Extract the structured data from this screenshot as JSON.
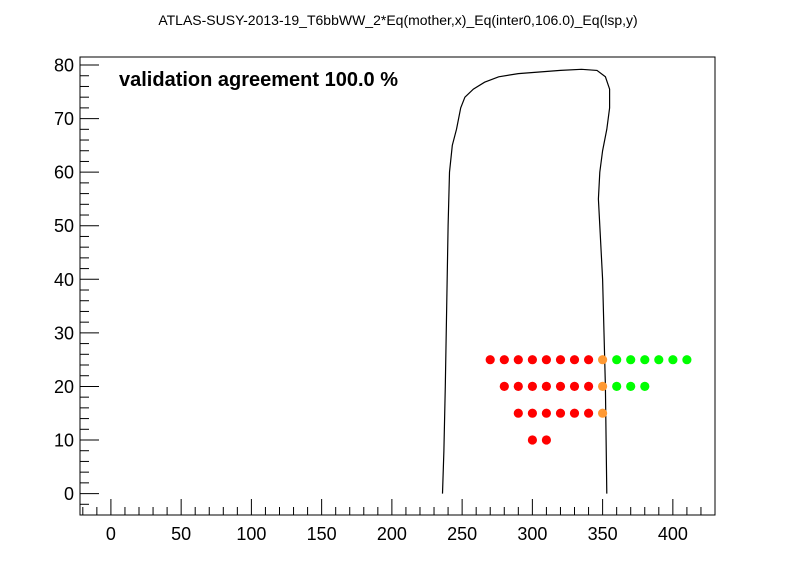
{
  "chart_data": {
    "type": "scatter",
    "title": "ATLAS-SUSY-2013-19_T6bbWW_2*Eq(mother,x)_Eq(inter0,106.0)_Eq(lsp,y)",
    "annotation": "validation agreement 100.0 %",
    "xlabel": "",
    "ylabel": "",
    "xlim": [
      -22,
      430
    ],
    "ylim": [
      -4,
      81.5
    ],
    "x_ticks": [
      0,
      50,
      100,
      150,
      200,
      250,
      300,
      350,
      400
    ],
    "x_tick_labels": [
      "0",
      "50",
      "100",
      "150",
      "200",
      "250",
      "300",
      "350",
      "400"
    ],
    "y_ticks": [
      0,
      10,
      20,
      30,
      40,
      50,
      60,
      70,
      80
    ],
    "y_tick_labels": [
      "0",
      "10",
      "20",
      "30",
      "40",
      "50",
      "60",
      "70",
      "80"
    ],
    "grid": false,
    "colors": {
      "red": "#ff0000",
      "orange": "#ff9933",
      "green": "#00ff00",
      "contour": "#000000"
    },
    "series": [
      {
        "color": "red",
        "points": [
          [
            270,
            25
          ],
          [
            280,
            25
          ],
          [
            290,
            25
          ],
          [
            300,
            25
          ],
          [
            310,
            25
          ],
          [
            320,
            25
          ],
          [
            330,
            25
          ],
          [
            340,
            25
          ],
          [
            280,
            20
          ],
          [
            290,
            20
          ],
          [
            300,
            20
          ],
          [
            310,
            20
          ],
          [
            320,
            20
          ],
          [
            330,
            20
          ],
          [
            340,
            20
          ],
          [
            290,
            15
          ],
          [
            300,
            15
          ],
          [
            310,
            15
          ],
          [
            320,
            15
          ],
          [
            330,
            15
          ],
          [
            340,
            15
          ],
          [
            300,
            10
          ],
          [
            310,
            10
          ]
        ]
      },
      {
        "color": "orange",
        "points": [
          [
            350,
            25
          ],
          [
            350,
            20
          ],
          [
            350,
            15
          ]
        ]
      },
      {
        "color": "green",
        "points": [
          [
            360,
            25
          ],
          [
            370,
            25
          ],
          [
            380,
            25
          ],
          [
            390,
            25
          ],
          [
            400,
            25
          ],
          [
            410,
            25
          ],
          [
            360,
            20
          ],
          [
            370,
            20
          ],
          [
            380,
            20
          ]
        ]
      }
    ],
    "contour": [
      [
        236,
        0
      ],
      [
        237,
        8
      ],
      [
        238,
        20
      ],
      [
        239,
        35
      ],
      [
        240,
        50
      ],
      [
        241,
        60
      ],
      [
        243,
        65
      ],
      [
        246,
        68
      ],
      [
        249,
        72
      ],
      [
        252,
        74
      ],
      [
        258,
        75.5
      ],
      [
        266,
        76.8
      ],
      [
        276,
        77.8
      ],
      [
        290,
        78.4
      ],
      [
        305,
        78.7
      ],
      [
        320,
        79
      ],
      [
        335,
        79.2
      ],
      [
        346,
        79
      ],
      [
        352,
        77.8
      ],
      [
        355,
        75.5
      ],
      [
        355,
        72
      ],
      [
        353,
        68
      ],
      [
        350,
        64
      ],
      [
        348,
        60
      ],
      [
        347,
        55
      ],
      [
        348,
        50
      ],
      [
        349,
        45
      ],
      [
        350,
        40
      ],
      [
        351,
        30
      ],
      [
        352,
        20
      ],
      [
        352.5,
        10
      ],
      [
        353,
        0
      ]
    ]
  }
}
